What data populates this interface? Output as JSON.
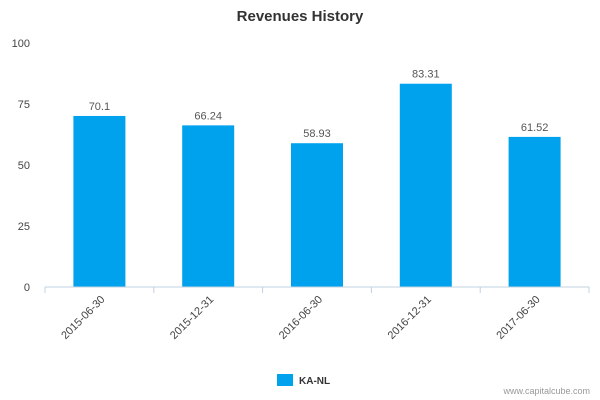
{
  "chart_data": {
    "type": "bar",
    "title": "Revenues History",
    "categories": [
      "2015-06-30",
      "2015-12-31",
      "2016-06-30",
      "2016-12-31",
      "2017-06-30"
    ],
    "series": [
      {
        "name": "KA-NL",
        "values": [
          70.1,
          66.24,
          58.93,
          83.31,
          61.52
        ],
        "color": "#00a2ed"
      }
    ],
    "value_labels": [
      "70.1",
      "66.24",
      "58.93",
      "83.31",
      "61.52"
    ],
    "ylim": [
      0,
      100
    ],
    "yticks": [
      0,
      25,
      50,
      75,
      100
    ],
    "grid": false,
    "legend_position": "bottom-center"
  },
  "credit": "www.capitalcube.com"
}
